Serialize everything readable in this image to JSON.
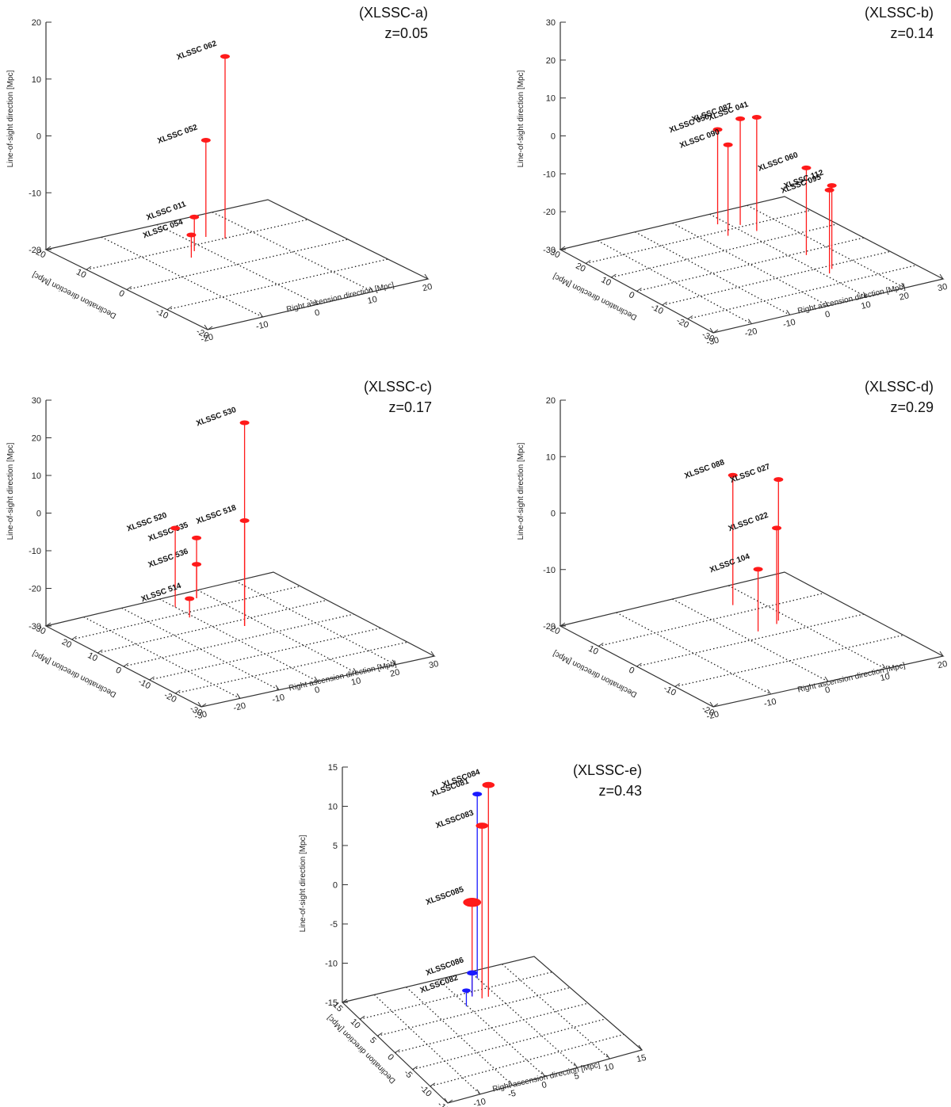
{
  "colors": {
    "red": "#ff1a1a",
    "blue": "#1a1aff",
    "axis": "#333333",
    "grid": "#222222"
  },
  "chart_data": [
    {
      "type": "scatter",
      "id": "a",
      "title": "(XLSSC-a)",
      "subtitle": "z=0.05",
      "zlabel": "Line-of-sight direction [Mpc]",
      "xlabel": "Right ascension direction [Mpc]",
      "ylabel": "Declination direction [Mpc]",
      "xlim": [
        -20,
        20
      ],
      "ylim": [
        -20,
        20
      ],
      "zlim": [
        -20,
        20
      ],
      "xticks": [
        "-20",
        "-10",
        "0",
        "10",
        "20"
      ],
      "yticks": [
        "20",
        "10",
        "0",
        "-10",
        "-20"
      ],
      "zticks": [
        "20",
        "10",
        "0",
        "-10",
        "-20"
      ],
      "clusters": [
        {
          "name": "XLSSC 062",
          "x": -10,
          "y": 5,
          "z": 12,
          "color": "red",
          "size": 1
        },
        {
          "name": "XLSSC 052",
          "x": -12,
          "y": 3,
          "z": -3,
          "color": "red",
          "size": 1
        },
        {
          "name": "XLSSC 011",
          "x": -8,
          "y": -2,
          "z": -14,
          "color": "red",
          "size": 1
        },
        {
          "name": "XLSSC 054",
          "x": -6,
          "y": -4,
          "z": -16,
          "color": "red",
          "size": 1
        }
      ]
    },
    {
      "type": "scatter",
      "id": "b",
      "title": "(XLSSC-b)",
      "subtitle": "z=0.14",
      "zlabel": "Line-of-sight direction [Mpc]",
      "xlabel": "Right ascension direction [Mpc]",
      "ylabel": "Declination direction [Mpc]",
      "xlim": [
        -30,
        30
      ],
      "ylim": [
        -30,
        30
      ],
      "zlim": [
        -30,
        30
      ],
      "xticks": [
        "-30",
        "-20",
        "-10",
        "0",
        "10",
        "20",
        "30"
      ],
      "yticks": [
        "30",
        "20",
        "10",
        "0",
        "-10",
        "-20",
        "-30"
      ],
      "zticks": [
        "30",
        "20",
        "10",
        "0",
        "-10",
        "-20",
        "-30"
      ],
      "clusters": [
        {
          "name": "XLSSC 050",
          "x": -24,
          "y": 8,
          "z": -5,
          "color": "red",
          "size": 1
        },
        {
          "name": "XLSSC 087",
          "x": -21,
          "y": 12,
          "z": -2,
          "color": "red",
          "size": 1
        },
        {
          "name": "XLSSC 041",
          "x": -16,
          "y": 13,
          "z": 0,
          "color": "red",
          "size": 1
        },
        {
          "name": "XLSSC 090",
          "x": -17,
          "y": 6,
          "z": -6,
          "color": "red",
          "size": 1
        },
        {
          "name": "XLSSC 060",
          "x": 2,
          "y": 14,
          "z": -7,
          "color": "red",
          "size": 1
        },
        {
          "name": "XLSSC 112",
          "x": 12,
          "y": 14,
          "z": -8,
          "color": "red",
          "size": 1
        },
        {
          "name": "XLSSC 095",
          "x": 14,
          "y": 12,
          "z": -8,
          "color": "red",
          "size": 1
        }
      ]
    },
    {
      "type": "scatter",
      "id": "c",
      "title": "(XLSSC-c)",
      "subtitle": "z=0.17",
      "zlabel": "Line-of-sight direction [Mpc]",
      "xlabel": "Right ascension direction [Mpc]",
      "ylabel": "Declination direction [Mpc]",
      "xlim": [
        -30,
        30
      ],
      "ylim": [
        -30,
        30
      ],
      "zlim": [
        -30,
        30
      ],
      "xticks": [
        "-30",
        "-20",
        "-10",
        "0",
        "10",
        "20",
        "30"
      ],
      "yticks": [
        "30",
        "20",
        "10",
        "0",
        "-10",
        "-20",
        "-30"
      ],
      "zticks": [
        "30",
        "20",
        "10",
        "0",
        "-10",
        "-20",
        "-30"
      ],
      "clusters": [
        {
          "name": "XLSSC 535",
          "x": -26,
          "y": 7,
          "z": -14,
          "color": "red",
          "size": 1
        },
        {
          "name": "XLSSC 536",
          "x": -26,
          "y": 7,
          "z": -21,
          "color": "red",
          "size": 1
        },
        {
          "name": "XLSSC 520",
          "x": -24,
          "y": 0,
          "z": -9,
          "color": "red",
          "size": 1
        },
        {
          "name": "XLSSC 514",
          "x": -17,
          "y": -1,
          "z": -25,
          "color": "red",
          "size": 1
        },
        {
          "name": "XLSSC 530",
          "x": -6,
          "y": 6,
          "z": 24,
          "color": "red",
          "size": 1
        },
        {
          "name": "XLSSC 518",
          "x": -6,
          "y": 6,
          "z": -2,
          "color": "red",
          "size": 1
        }
      ]
    },
    {
      "type": "scatter",
      "id": "d",
      "title": "(XLSSC-d)",
      "subtitle": "z=0.29",
      "zlabel": "Line-of-sight direction [Mpc]",
      "xlabel": "Right ascension direction [Mpc]",
      "ylabel": "Declination direction [Mpc]",
      "xlim": [
        -20,
        20
      ],
      "ylim": [
        -20,
        20
      ],
      "zlim": [
        -20,
        20
      ],
      "xticks": [
        "-20",
        "-10",
        "0",
        "10",
        "20"
      ],
      "yticks": [
        "20",
        "10",
        "0",
        "-10",
        "-20"
      ],
      "zticks": [
        "20",
        "10",
        "0",
        "-10",
        "-20"
      ],
      "clusters": [
        {
          "name": "XLSSC 088",
          "x": -13,
          "y": 6,
          "z": 3,
          "color": "red",
          "size": 1
        },
        {
          "name": "XLSSC 027",
          "x": -4,
          "y": 8,
          "z": 5,
          "color": "red",
          "size": 1
        },
        {
          "name": "XLSSC 022",
          "x": -3,
          "y": 7,
          "z": -3,
          "color": "red",
          "size": 1
        },
        {
          "name": "XLSSC 104",
          "x": -2,
          "y": 3,
          "z": -9,
          "color": "red",
          "size": 1
        }
      ]
    },
    {
      "type": "scatter",
      "id": "e",
      "title": "(XLSSC-e)",
      "subtitle": "z=0.43",
      "zlabel": "Line-of-sight direction [Mpc]",
      "xlabel": "Right ascension direction [Mpc]",
      "ylabel": "Declination direction [Mpc]",
      "xlim": [
        -15,
        15
      ],
      "ylim": [
        -15,
        15
      ],
      "zlim": [
        -15,
        15
      ],
      "xticks": [
        "-15",
        "-10",
        "-5",
        "0",
        "5",
        "10",
        "15"
      ],
      "yticks": [
        "15",
        "10",
        "5",
        "0",
        "-5",
        "-10",
        "-15"
      ],
      "zticks": [
        "15",
        "10",
        "5",
        "0",
        "-5",
        "-10",
        "-15"
      ],
      "clusters": [
        {
          "name": "XLSSC081",
          "x": -13,
          "y": 5,
          "z": 8.5,
          "color": "blue",
          "size": 1
        },
        {
          "name": "XLSSC084",
          "x": -8,
          "y": 4,
          "z": 12,
          "color": "red",
          "size": 1.3
        },
        {
          "name": "XLSSC083",
          "x": -8,
          "y": 3,
          "z": 7,
          "color": "red",
          "size": 1.3
        },
        {
          "name": "XLSSC085",
          "x": -9,
          "y": 2,
          "z": -3,
          "color": "red",
          "size": 1.9
        },
        {
          "name": "XLSSC086",
          "x": -9,
          "y": 2,
          "z": -12,
          "color": "blue",
          "size": 1.1
        },
        {
          "name": "XLSSC082",
          "x": -7,
          "y": 0,
          "z": -13,
          "color": "blue",
          "size": 0.9
        }
      ]
    }
  ]
}
